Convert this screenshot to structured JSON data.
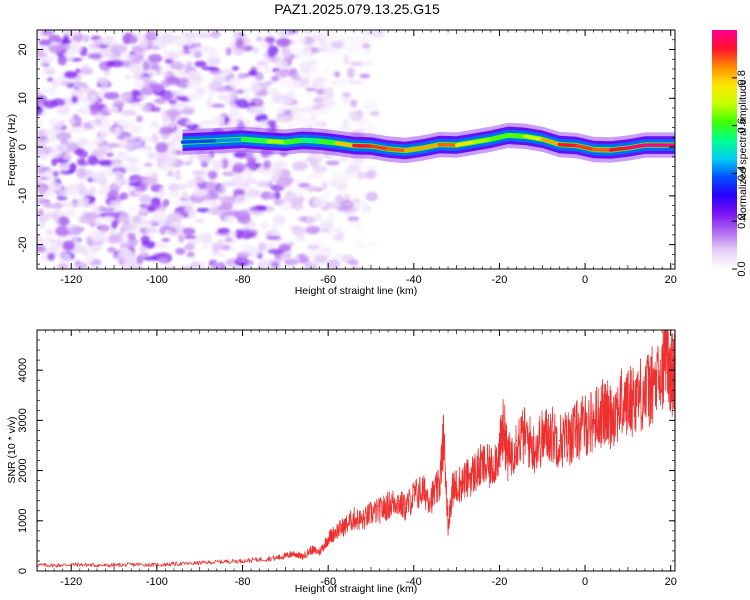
{
  "title": "PAZ1.2025.079.13.25.G15",
  "chart_data": [
    {
      "type": "heatmap",
      "xlabel": "Height of straight line (km)",
      "ylabel": "Frequency (Hz)",
      "xlim": [
        -128,
        21
      ],
      "ylim": [
        -25,
        24
      ],
      "xticks": [
        -120,
        -100,
        -80,
        -60,
        -40,
        -20,
        0,
        20
      ],
      "yticks": [
        -20,
        -10,
        0,
        10,
        20
      ],
      "colorbar": {
        "label": "Normalized spectral amplitude",
        "range": [
          0,
          1
        ],
        "ticks": [
          0.0,
          0.2,
          0.4,
          0.6,
          0.8
        ],
        "colormap": [
          "#ffffff",
          "#e6d0f7",
          "#b06cf0",
          "#7a14f0",
          "#2a00ff",
          "#0050ff",
          "#00d0f0",
          "#00ff90",
          "#40ff00",
          "#c8ff00",
          "#ffe800",
          "#ff8c00",
          "#ff1030",
          "#ff0090"
        ]
      },
      "signal_ridge": {
        "description_points_x": [
          -94,
          -86,
          -80,
          -74,
          -70,
          -66,
          -62,
          -58,
          -54,
          -50,
          -46,
          -42,
          -38,
          -34,
          -30,
          -26,
          -22,
          -18,
          -14,
          -10,
          -6,
          -2,
          2,
          6,
          10,
          14,
          18,
          21
        ],
        "frequency_hz": [
          1,
          1.3,
          1.6,
          1.2,
          1.0,
          1.4,
          1.2,
          0.8,
          0.3,
          0.2,
          -0.4,
          -0.7,
          -0.2,
          0.5,
          0.4,
          1.0,
          1.6,
          2.4,
          2.2,
          1.6,
          0.5,
          0.3,
          -0.5,
          -0.6,
          -0.2,
          0.4,
          0.4,
          0.4
        ],
        "amplitude": [
          0.35,
          0.4,
          0.45,
          0.7,
          0.65,
          0.55,
          0.5,
          0.7,
          0.9,
          0.95,
          0.85,
          0.9,
          0.75,
          0.9,
          0.85,
          0.7,
          0.65,
          0.6,
          0.65,
          0.75,
          0.9,
          0.95,
          0.85,
          0.9,
          0.95,
          1.0,
          1.0,
          1.0
        ]
      }
    },
    {
      "type": "line",
      "xlabel": "Height of straight line (km)",
      "ylabel": "SNR (10 * v/v)",
      "xlim": [
        -128,
        21
      ],
      "ylim": [
        0,
        4800
      ],
      "xticks": [
        -120,
        -100,
        -80,
        -60,
        -40,
        -20,
        0,
        20
      ],
      "yticks": [
        0,
        1000,
        2000,
        3000,
        4000
      ],
      "series": [
        {
          "color": "#ee3030",
          "x": [
            -128,
            -124,
            -120,
            -116,
            -112,
            -108,
            -104,
            -100,
            -96,
            -92,
            -88,
            -84,
            -80,
            -76,
            -72,
            -70,
            -68,
            -66,
            -64,
            -62,
            -60,
            -58,
            -56,
            -54,
            -52,
            -50,
            -48,
            -46,
            -44,
            -42,
            -40,
            -38,
            -36,
            -34,
            -33,
            -32,
            -31,
            -30,
            -28,
            -26,
            -24,
            -22,
            -20,
            -19,
            -18,
            -16,
            -14,
            -12,
            -10,
            -8,
            -6,
            -4,
            -2,
            0,
            2,
            4,
            6,
            8,
            10,
            12,
            14,
            16,
            18,
            19,
            20,
            21
          ],
          "y": [
            120,
            110,
            130,
            120,
            110,
            120,
            130,
            120,
            140,
            150,
            170,
            190,
            200,
            230,
            260,
            300,
            350,
            280,
            420,
            380,
            650,
            800,
            900,
            1050,
            1000,
            1150,
            1200,
            1300,
            1400,
            1250,
            1500,
            1600,
            1450,
            1700,
            2700,
            900,
            1600,
            1700,
            1800,
            1950,
            2100,
            2050,
            2400,
            2900,
            2200,
            2600,
            2700,
            2450,
            2650,
            2750,
            2600,
            2650,
            2800,
            2900,
            3000,
            3150,
            3100,
            3300,
            3350,
            3500,
            3550,
            3700,
            3800,
            4700,
            3900,
            3950
          ]
        }
      ]
    }
  ]
}
